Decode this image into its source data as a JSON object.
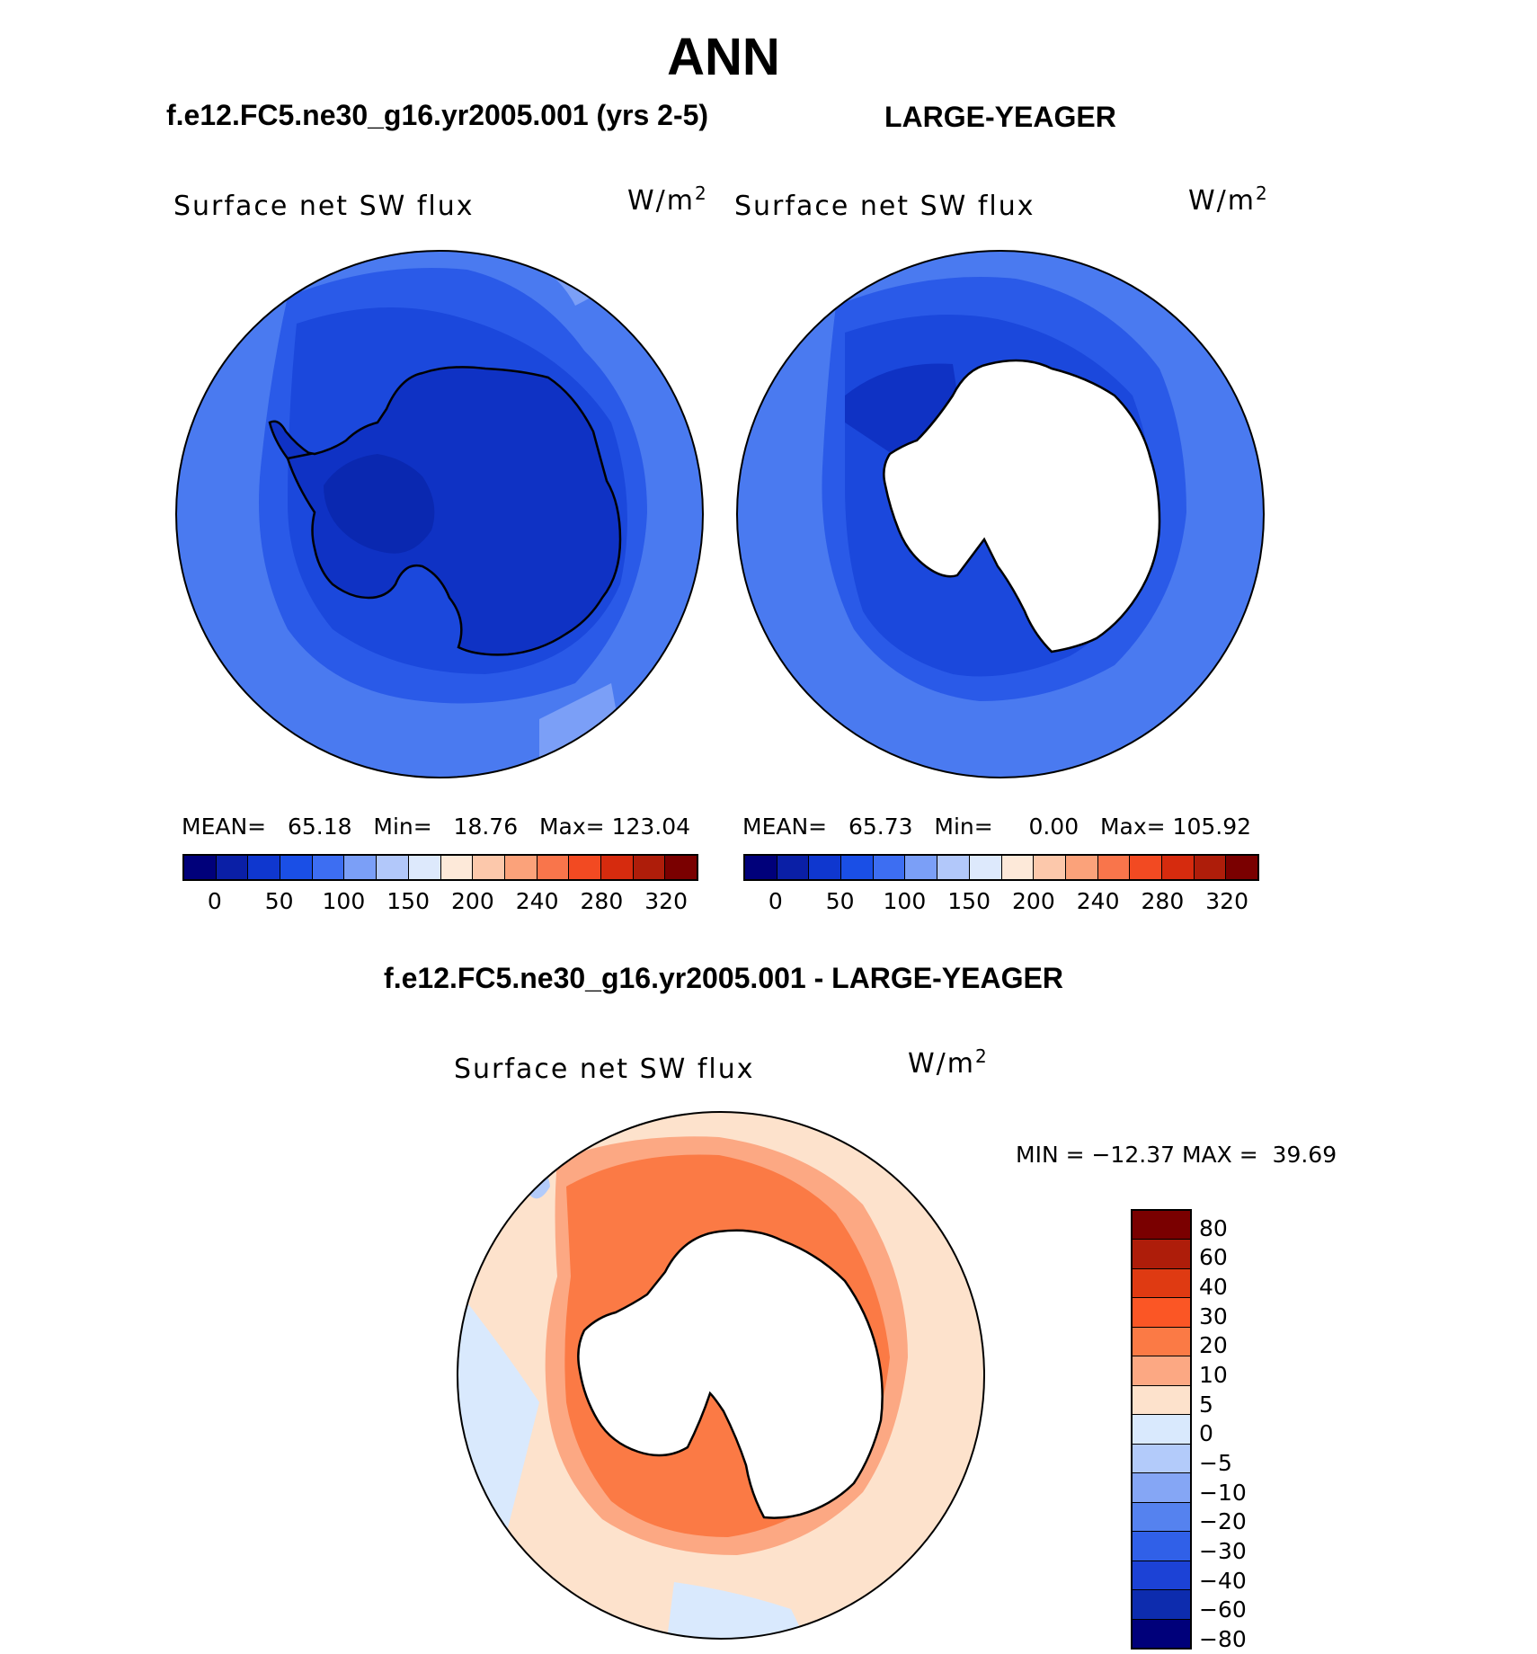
{
  "title": "ANN",
  "panels": [
    {
      "subtitle": "f.e12.FC5.ne30_g16.yr2005.001 (yrs 2-5)",
      "variable": "Surface net SW flux",
      "units": "W/m",
      "units_exp": "2",
      "mean_label": "MEAN=",
      "mean": "65.18",
      "min_label": "Min=",
      "min": "18.76",
      "max_label": "Max=",
      "max": "123.04"
    },
    {
      "subtitle": "LARGE-YEAGER",
      "variable": "Surface net SW flux",
      "units": "W/m",
      "units_exp": "2",
      "mean_label": "MEAN=",
      "mean": "65.73",
      "min_label": "Min=",
      "min": "0.00",
      "max_label": "Max=",
      "max": "105.92"
    }
  ],
  "colorbar": {
    "colors": [
      "#00007a",
      "#0a1fa6",
      "#0f37cf",
      "#1a4fe6",
      "#3d6ef2",
      "#7b9ff7",
      "#b2c8fa",
      "#dde9fc",
      "#fde9d9",
      "#fcc8ab",
      "#fba27a",
      "#f9754b",
      "#f24a22",
      "#d62b0e",
      "#ae1d0a",
      "#7a0000"
    ],
    "ticks": [
      "0",
      "50",
      "100",
      "150",
      "200",
      "240",
      "280",
      "320"
    ]
  },
  "diff": {
    "subtitle": "f.e12.FC5.ne30_g16.yr2005.001 - LARGE-YEAGER",
    "variable": "Surface net SW flux",
    "units": "W/m",
    "units_exp": "2",
    "minmax": "MIN = −12.37 MAX =  39.69",
    "colors": [
      "#7a0000",
      "#ae1d0a",
      "#df3a12",
      "#fb5625",
      "#fb7a45",
      "#fca883",
      "#fde2cc",
      "#d9e9fd",
      "#b3cbfa",
      "#85a6f5",
      "#5582ef",
      "#3060e8",
      "#1c42d6",
      "#0d2cae",
      "#00007a"
    ],
    "ticks": [
      "80",
      "60",
      "40",
      "30",
      "20",
      "10",
      "5",
      "0",
      "−5",
      "−10",
      "−20",
      "−30",
      "−40",
      "−60",
      "−80"
    ]
  },
  "map_colors": {
    "ocean_outer": "#4a7af0",
    "ocean_mid": "#2a5ae8",
    "ocean_inner": "#1b48dc",
    "ice_shelf": "#0f32c4",
    "land_deep": "#0a28b0",
    "light_band": "#7b9ff7",
    "missing": "#ffffff",
    "diff_base": "#fde2cc",
    "diff_mid": "#fca883",
    "diff_high": "#fb7a45",
    "diff_neg": "#d9e9fd",
    "diff_neg2": "#b3cbfa"
  }
}
